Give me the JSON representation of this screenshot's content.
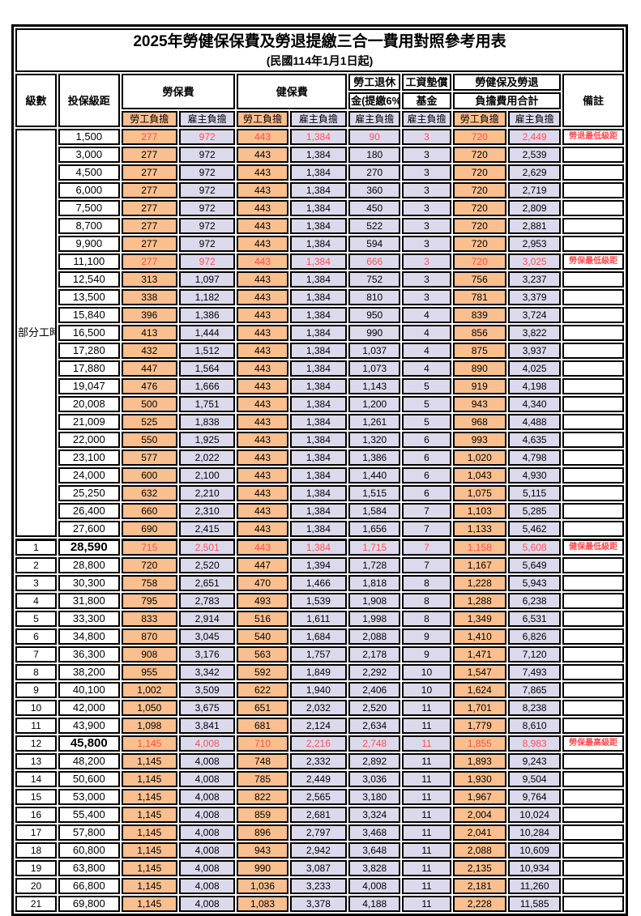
{
  "title": "2025年勞健保保費及勞退提繳三合一費用對照參考用表",
  "subtitle": "(民國114年1月1日起)",
  "header": {
    "level": "級數",
    "bracket": "投保級距",
    "labor_fee": "勞保費",
    "health_fee": "健保費",
    "pension_line1": "勞工退休",
    "pension_line2": "金(提繳6%)",
    "fund_line1": "工資墊償",
    "fund_line2": "基金",
    "total_line1": "勞健保及勞退",
    "total_line2": "負擔費用合計",
    "remark": "備註",
    "employee_share": "勞工負擔",
    "employer_share": "雇主負擔"
  },
  "group_label": "部分工時",
  "colors": {
    "employee_bg": "#FABF8F",
    "employer_bg": "#DDD9EC",
    "highlight_text": "#FF5050",
    "remark_text": "#FF4B4B",
    "border": "#000000"
  },
  "rows": [
    {
      "level": "",
      "bracket": "1,500",
      "labor_emp": "277",
      "labor_er": "972",
      "health_emp": "443",
      "health_er": "1,384",
      "pension": "90",
      "fund": "3",
      "total_emp": "720",
      "total_er": "2,449",
      "remark": "勞退最低級距",
      "red": true,
      "big": false
    },
    {
      "level": "",
      "bracket": "3,000",
      "labor_emp": "277",
      "labor_er": "972",
      "health_emp": "443",
      "health_er": "1,384",
      "pension": "180",
      "fund": "3",
      "total_emp": "720",
      "total_er": "2,539",
      "remark": "",
      "red": false,
      "big": false
    },
    {
      "level": "",
      "bracket": "4,500",
      "labor_emp": "277",
      "labor_er": "972",
      "health_emp": "443",
      "health_er": "1,384",
      "pension": "270",
      "fund": "3",
      "total_emp": "720",
      "total_er": "2,629",
      "remark": "",
      "red": false,
      "big": false
    },
    {
      "level": "",
      "bracket": "6,000",
      "labor_emp": "277",
      "labor_er": "972",
      "health_emp": "443",
      "health_er": "1,384",
      "pension": "360",
      "fund": "3",
      "total_emp": "720",
      "total_er": "2,719",
      "remark": "",
      "red": false,
      "big": false
    },
    {
      "level": "",
      "bracket": "7,500",
      "labor_emp": "277",
      "labor_er": "972",
      "health_emp": "443",
      "health_er": "1,384",
      "pension": "450",
      "fund": "3",
      "total_emp": "720",
      "total_er": "2,809",
      "remark": "",
      "red": false,
      "big": false
    },
    {
      "level": "",
      "bracket": "8,700",
      "labor_emp": "277",
      "labor_er": "972",
      "health_emp": "443",
      "health_er": "1,384",
      "pension": "522",
      "fund": "3",
      "total_emp": "720",
      "total_er": "2,881",
      "remark": "",
      "red": false,
      "big": false
    },
    {
      "level": "",
      "bracket": "9,900",
      "labor_emp": "277",
      "labor_er": "972",
      "health_emp": "443",
      "health_er": "1,384",
      "pension": "594",
      "fund": "3",
      "total_emp": "720",
      "total_er": "2,953",
      "remark": "",
      "red": false,
      "big": false
    },
    {
      "level": "",
      "bracket": "11,100",
      "labor_emp": "277",
      "labor_er": "972",
      "health_emp": "443",
      "health_er": "1,384",
      "pension": "666",
      "fund": "3",
      "total_emp": "720",
      "total_er": "3,025",
      "remark": "勞保最低級距",
      "red": true,
      "big": false
    },
    {
      "level": "",
      "bracket": "12,540",
      "labor_emp": "313",
      "labor_er": "1,097",
      "health_emp": "443",
      "health_er": "1,384",
      "pension": "752",
      "fund": "3",
      "total_emp": "756",
      "total_er": "3,237",
      "remark": "",
      "red": false,
      "big": false
    },
    {
      "level": "",
      "bracket": "13,500",
      "labor_emp": "338",
      "labor_er": "1,182",
      "health_emp": "443",
      "health_er": "1,384",
      "pension": "810",
      "fund": "3",
      "total_emp": "781",
      "total_er": "3,379",
      "remark": "",
      "red": false,
      "big": false
    },
    {
      "level": "",
      "bracket": "15,840",
      "labor_emp": "396",
      "labor_er": "1,386",
      "health_emp": "443",
      "health_er": "1,384",
      "pension": "950",
      "fund": "4",
      "total_emp": "839",
      "total_er": "3,724",
      "remark": "",
      "red": false,
      "big": false
    },
    {
      "level": "",
      "bracket": "16,500",
      "labor_emp": "413",
      "labor_er": "1,444",
      "health_emp": "443",
      "health_er": "1,384",
      "pension": "990",
      "fund": "4",
      "total_emp": "856",
      "total_er": "3,822",
      "remark": "",
      "red": false,
      "big": false
    },
    {
      "level": "",
      "bracket": "17,280",
      "labor_emp": "432",
      "labor_er": "1,512",
      "health_emp": "443",
      "health_er": "1,384",
      "pension": "1,037",
      "fund": "4",
      "total_emp": "875",
      "total_er": "3,937",
      "remark": "",
      "red": false,
      "big": false
    },
    {
      "level": "",
      "bracket": "17,880",
      "labor_emp": "447",
      "labor_er": "1,564",
      "health_emp": "443",
      "health_er": "1,384",
      "pension": "1,073",
      "fund": "4",
      "total_emp": "890",
      "total_er": "4,025",
      "remark": "",
      "red": false,
      "big": false
    },
    {
      "level": "",
      "bracket": "19,047",
      "labor_emp": "476",
      "labor_er": "1,666",
      "health_emp": "443",
      "health_er": "1,384",
      "pension": "1,143",
      "fund": "5",
      "total_emp": "919",
      "total_er": "4,198",
      "remark": "",
      "red": false,
      "big": false
    },
    {
      "level": "",
      "bracket": "20,008",
      "labor_emp": "500",
      "labor_er": "1,751",
      "health_emp": "443",
      "health_er": "1,384",
      "pension": "1,200",
      "fund": "5",
      "total_emp": "943",
      "total_er": "4,340",
      "remark": "",
      "red": false,
      "big": false
    },
    {
      "level": "",
      "bracket": "21,009",
      "labor_emp": "525",
      "labor_er": "1,838",
      "health_emp": "443",
      "health_er": "1,384",
      "pension": "1,261",
      "fund": "5",
      "total_emp": "968",
      "total_er": "4,488",
      "remark": "",
      "red": false,
      "big": false
    },
    {
      "level": "",
      "bracket": "22,000",
      "labor_emp": "550",
      "labor_er": "1,925",
      "health_emp": "443",
      "health_er": "1,384",
      "pension": "1,320",
      "fund": "6",
      "total_emp": "993",
      "total_er": "4,635",
      "remark": "",
      "red": false,
      "big": false
    },
    {
      "level": "",
      "bracket": "23,100",
      "labor_emp": "577",
      "labor_er": "2,022",
      "health_emp": "443",
      "health_er": "1,384",
      "pension": "1,386",
      "fund": "6",
      "total_emp": "1,020",
      "total_er": "4,798",
      "remark": "",
      "red": false,
      "big": false
    },
    {
      "level": "",
      "bracket": "24,000",
      "labor_emp": "600",
      "labor_er": "2,100",
      "health_emp": "443",
      "health_er": "1,384",
      "pension": "1,440",
      "fund": "6",
      "total_emp": "1,043",
      "total_er": "4,930",
      "remark": "",
      "red": false,
      "big": false
    },
    {
      "level": "",
      "bracket": "25,250",
      "labor_emp": "632",
      "labor_er": "2,210",
      "health_emp": "443",
      "health_er": "1,384",
      "pension": "1,515",
      "fund": "6",
      "total_emp": "1,075",
      "total_er": "5,115",
      "remark": "",
      "red": false,
      "big": false
    },
    {
      "level": "",
      "bracket": "26,400",
      "labor_emp": "660",
      "labor_er": "2,310",
      "health_emp": "443",
      "health_er": "1,384",
      "pension": "1,584",
      "fund": "7",
      "total_emp": "1,103",
      "total_er": "5,285",
      "remark": "",
      "red": false,
      "big": false
    },
    {
      "level": "",
      "bracket": "27,600",
      "labor_emp": "690",
      "labor_er": "2,415",
      "health_emp": "443",
      "health_er": "1,384",
      "pension": "1,656",
      "fund": "7",
      "total_emp": "1,133",
      "total_er": "5,462",
      "remark": "",
      "red": false,
      "big": false
    },
    {
      "level": "1",
      "bracket": "28,590",
      "labor_emp": "715",
      "labor_er": "2,501",
      "health_emp": "443",
      "health_er": "1,384",
      "pension": "1,715",
      "fund": "7",
      "total_emp": "1,158",
      "total_er": "5,608",
      "remark": "健保最低級距",
      "red": true,
      "big": true
    },
    {
      "level": "2",
      "bracket": "28,800",
      "labor_emp": "720",
      "labor_er": "2,520",
      "health_emp": "447",
      "health_er": "1,394",
      "pension": "1,728",
      "fund": "7",
      "total_emp": "1,167",
      "total_er": "5,649",
      "remark": "",
      "red": false,
      "big": false
    },
    {
      "level": "3",
      "bracket": "30,300",
      "labor_emp": "758",
      "labor_er": "2,651",
      "health_emp": "470",
      "health_er": "1,466",
      "pension": "1,818",
      "fund": "8",
      "total_emp": "1,228",
      "total_er": "5,943",
      "remark": "",
      "red": false,
      "big": false
    },
    {
      "level": "4",
      "bracket": "31,800",
      "labor_emp": "795",
      "labor_er": "2,783",
      "health_emp": "493",
      "health_er": "1,539",
      "pension": "1,908",
      "fund": "8",
      "total_emp": "1,288",
      "total_er": "6,238",
      "remark": "",
      "red": false,
      "big": false
    },
    {
      "level": "5",
      "bracket": "33,300",
      "labor_emp": "833",
      "labor_er": "2,914",
      "health_emp": "516",
      "health_er": "1,611",
      "pension": "1,998",
      "fund": "8",
      "total_emp": "1,349",
      "total_er": "6,531",
      "remark": "",
      "red": false,
      "big": false
    },
    {
      "level": "6",
      "bracket": "34,800",
      "labor_emp": "870",
      "labor_er": "3,045",
      "health_emp": "540",
      "health_er": "1,684",
      "pension": "2,088",
      "fund": "9",
      "total_emp": "1,410",
      "total_er": "6,826",
      "remark": "",
      "red": false,
      "big": false
    },
    {
      "level": "7",
      "bracket": "36,300",
      "labor_emp": "908",
      "labor_er": "3,176",
      "health_emp": "563",
      "health_er": "1,757",
      "pension": "2,178",
      "fund": "9",
      "total_emp": "1,471",
      "total_er": "7,120",
      "remark": "",
      "red": false,
      "big": false
    },
    {
      "level": "8",
      "bracket": "38,200",
      "labor_emp": "955",
      "labor_er": "3,342",
      "health_emp": "592",
      "health_er": "1,849",
      "pension": "2,292",
      "fund": "10",
      "total_emp": "1,547",
      "total_er": "7,493",
      "remark": "",
      "red": false,
      "big": false
    },
    {
      "level": "9",
      "bracket": "40,100",
      "labor_emp": "1,002",
      "labor_er": "3,509",
      "health_emp": "622",
      "health_er": "1,940",
      "pension": "2,406",
      "fund": "10",
      "total_emp": "1,624",
      "total_er": "7,865",
      "remark": "",
      "red": false,
      "big": false
    },
    {
      "level": "10",
      "bracket": "42,000",
      "labor_emp": "1,050",
      "labor_er": "3,675",
      "health_emp": "651",
      "health_er": "2,032",
      "pension": "2,520",
      "fund": "11",
      "total_emp": "1,701",
      "total_er": "8,238",
      "remark": "",
      "red": false,
      "big": false
    },
    {
      "level": "11",
      "bracket": "43,900",
      "labor_emp": "1,098",
      "labor_er": "3,841",
      "health_emp": "681",
      "health_er": "2,124",
      "pension": "2,634",
      "fund": "11",
      "total_emp": "1,779",
      "total_er": "8,610",
      "remark": "",
      "red": false,
      "big": false
    },
    {
      "level": "12",
      "bracket": "45,800",
      "labor_emp": "1,145",
      "labor_er": "4,008",
      "health_emp": "710",
      "health_er": "2,216",
      "pension": "2,748",
      "fund": "11",
      "total_emp": "1,855",
      "total_er": "8,983",
      "remark": "勞保最高級距",
      "red": true,
      "big": true
    },
    {
      "level": "13",
      "bracket": "48,200",
      "labor_emp": "1,145",
      "labor_er": "4,008",
      "health_emp": "748",
      "health_er": "2,332",
      "pension": "2,892",
      "fund": "11",
      "total_emp": "1,893",
      "total_er": "9,243",
      "remark": "",
      "red": false,
      "big": false
    },
    {
      "level": "14",
      "bracket": "50,600",
      "labor_emp": "1,145",
      "labor_er": "4,008",
      "health_emp": "785",
      "health_er": "2,449",
      "pension": "3,036",
      "fund": "11",
      "total_emp": "1,930",
      "total_er": "9,504",
      "remark": "",
      "red": false,
      "big": false
    },
    {
      "level": "15",
      "bracket": "53,000",
      "labor_emp": "1,145",
      "labor_er": "4,008",
      "health_emp": "822",
      "health_er": "2,565",
      "pension": "3,180",
      "fund": "11",
      "total_emp": "1,967",
      "total_er": "9,764",
      "remark": "",
      "red": false,
      "big": false
    },
    {
      "level": "16",
      "bracket": "55,400",
      "labor_emp": "1,145",
      "labor_er": "4,008",
      "health_emp": "859",
      "health_er": "2,681",
      "pension": "3,324",
      "fund": "11",
      "total_emp": "2,004",
      "total_er": "10,024",
      "remark": "",
      "red": false,
      "big": false
    },
    {
      "level": "17",
      "bracket": "57,800",
      "labor_emp": "1,145",
      "labor_er": "4,008",
      "health_emp": "896",
      "health_er": "2,797",
      "pension": "3,468",
      "fund": "11",
      "total_emp": "2,041",
      "total_er": "10,284",
      "remark": "",
      "red": false,
      "big": false
    },
    {
      "level": "18",
      "bracket": "60,800",
      "labor_emp": "1,145",
      "labor_er": "4,008",
      "health_emp": "943",
      "health_er": "2,942",
      "pension": "3,648",
      "fund": "11",
      "total_emp": "2,088",
      "total_er": "10,609",
      "remark": "",
      "red": false,
      "big": false
    },
    {
      "level": "19",
      "bracket": "63,800",
      "labor_emp": "1,145",
      "labor_er": "4,008",
      "health_emp": "990",
      "health_er": "3,087",
      "pension": "3,828",
      "fund": "11",
      "total_emp": "2,135",
      "total_er": "10,934",
      "remark": "",
      "red": false,
      "big": false
    },
    {
      "level": "20",
      "bracket": "66,800",
      "labor_emp": "1,145",
      "labor_er": "4,008",
      "health_emp": "1,036",
      "health_er": "3,233",
      "pension": "4,008",
      "fund": "11",
      "total_emp": "2,181",
      "total_er": "11,260",
      "remark": "",
      "red": false,
      "big": false
    },
    {
      "level": "21",
      "bracket": "69,800",
      "labor_emp": "1,145",
      "labor_er": "4,008",
      "health_emp": "1,083",
      "health_er": "3,378",
      "pension": "4,188",
      "fund": "11",
      "total_emp": "2,228",
      "total_er": "11,585",
      "remark": "",
      "red": false,
      "big": false
    }
  ]
}
